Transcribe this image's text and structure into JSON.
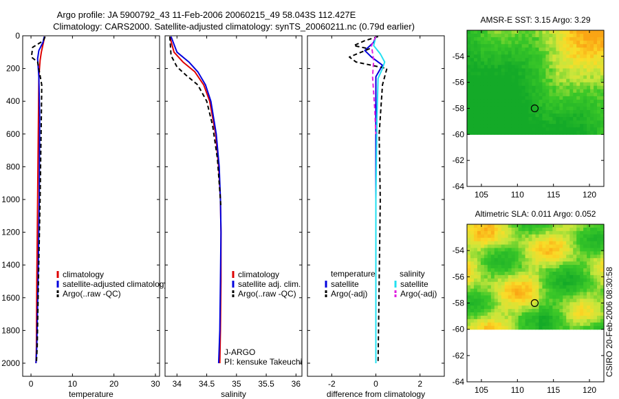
{
  "header": {
    "line1": "Argo profile: JA 5900792_43 11-Feb-2006 20060215_49 58.043S 112.427E",
    "line2": "Climatology: CARS2000. Satellite-adjusted climatology: synTS_20060211.nc (0.79d earlier)"
  },
  "colors": {
    "climatology": "#dd0000",
    "satellite": "#0000dd",
    "argo": "#000000",
    "salinity_satellite": "#22e0f0",
    "salinity_argo": "#e020e0"
  },
  "chart_data": [
    {
      "type": "line",
      "name": "temperature-profile",
      "xlabel": "temperature",
      "ylabel": "",
      "xlim": [
        -2,
        31
      ],
      "ylim": [
        2080,
        0
      ],
      "xticks": [
        "0",
        "10",
        "20",
        "30"
      ],
      "xtick_values": [
        0,
        10,
        20,
        30
      ],
      "yticks": [
        "0",
        "200",
        "400",
        "600",
        "800",
        "1000",
        "1200",
        "1400",
        "1600",
        "1800",
        "2000"
      ],
      "ytick_values": [
        0,
        200,
        400,
        600,
        800,
        1000,
        1200,
        1400,
        1600,
        1800,
        2000
      ],
      "legend": [
        "climatology",
        "satellite-adjusted climatology",
        "Argo(..raw -QC)"
      ],
      "series": [
        {
          "name": "climatology",
          "style": "solid",
          "color_key": "climatology",
          "x": [
            3.3,
            3.0,
            2.5,
            2.2,
            1.9,
            1.8,
            1.6,
            1.4,
            1.3,
            1.2
          ],
          "y": [
            5,
            40,
            100,
            150,
            250,
            500,
            1000,
            1500,
            1900,
            2000
          ]
        },
        {
          "name": "satellite-adjusted climatology",
          "style": "solid",
          "color_key": "satellite",
          "x": [
            3.2,
            2.9,
            1.9,
            1.6,
            1.9,
            2.1,
            2.0,
            1.7,
            1.4,
            1.2
          ],
          "y": [
            5,
            40,
            90,
            140,
            250,
            500,
            1000,
            1500,
            1900,
            2000
          ]
        },
        {
          "name": "Argo(..raw -QC)",
          "style": "dashed",
          "color_key": "argo",
          "x": [
            3.4,
            3.0,
            0.4,
            0.1,
            1.6,
            2.6,
            2.5,
            2.2,
            1.8,
            1.5,
            1.3
          ],
          "y": [
            5,
            30,
            70,
            130,
            160,
            300,
            500,
            1000,
            1500,
            1900,
            2000
          ]
        }
      ]
    },
    {
      "type": "line",
      "name": "salinity-profile",
      "xlabel": "salinity",
      "xlim": [
        33.8,
        36.1
      ],
      "ylim": [
        2080,
        0
      ],
      "xticks": [
        "34",
        "34.5",
        "35",
        "35.5",
        "36"
      ],
      "xtick_values": [
        34,
        34.5,
        35,
        35.5,
        36
      ],
      "legend": [
        "climatology",
        "satellite adj. clim.",
        "Argo(..raw -QC)"
      ],
      "annotation": [
        "J-ARGO",
        "PI: kensuke Takeuchi"
      ],
      "series": [
        {
          "name": "climatology",
          "style": "solid",
          "color_key": "climatology",
          "x": [
            33.88,
            33.95,
            34.1,
            34.3,
            34.45,
            34.55,
            34.65,
            34.7,
            34.73,
            34.74,
            34.74,
            34.73,
            34.72
          ],
          "y": [
            5,
            100,
            160,
            220,
            300,
            400,
            600,
            800,
            1000,
            1200,
            1500,
            1800,
            2000
          ]
        },
        {
          "name": "satellite adj. clim.",
          "style": "solid",
          "color_key": "satellite",
          "x": [
            33.9,
            34.0,
            34.2,
            34.35,
            34.48,
            34.57,
            34.66,
            34.71,
            34.73,
            34.74,
            34.73,
            34.72,
            34.7
          ],
          "y": [
            5,
            100,
            160,
            220,
            300,
            400,
            600,
            800,
            1000,
            1200,
            1500,
            1800,
            2000
          ]
        },
        {
          "name": "Argo(..raw -QC)",
          "style": "dashed",
          "color_key": "argo",
          "x": [
            33.88,
            33.9,
            34.0,
            34.15,
            34.35,
            34.5,
            34.6,
            34.68,
            34.72,
            34.74
          ],
          "y": [
            5,
            120,
            190,
            240,
            300,
            400,
            550,
            750,
            950,
            1050
          ]
        }
      ]
    },
    {
      "type": "line",
      "name": "difference-profile",
      "xlabel": "difference from climatology",
      "xlim": [
        -3.1,
        3.1
      ],
      "ylim": [
        2080,
        0
      ],
      "xticks": [
        "-2",
        "0",
        "2"
      ],
      "xtick_values": [
        -2,
        0,
        2
      ],
      "legend_headers": [
        "temperature",
        "salinity"
      ],
      "legend": [
        "satellite",
        "Argo(-adj)",
        "satellite",
        "Argo(-adj)"
      ],
      "series": [
        {
          "name": "temperature satellite",
          "style": "solid",
          "color_key": "satellite",
          "x": [
            0,
            -0.1,
            -0.5,
            -0.2,
            0.3,
            0.0,
            0.0,
            0.0,
            0.0,
            0.0
          ],
          "y": [
            5,
            40,
            90,
            130,
            180,
            250,
            600,
            1000,
            1500,
            2000
          ]
        },
        {
          "name": "temperature Argo(-adj)",
          "style": "dashed",
          "color_key": "argo",
          "x": [
            0.1,
            -0.5,
            -1.0,
            -0.3,
            -1.2,
            -0.9,
            0.5,
            0.3,
            0.15,
            0.2,
            0.15,
            0.1
          ],
          "y": [
            5,
            30,
            60,
            80,
            130,
            160,
            200,
            300,
            600,
            1000,
            1500,
            2000
          ]
        },
        {
          "name": "salinity satellite",
          "style": "solid",
          "color_key": "salinity_satellite",
          "x": [
            0.0,
            -0.1,
            0.2,
            0.4,
            0.3,
            0.1,
            0.05,
            0.0,
            0.0,
            0.0
          ],
          "y": [
            5,
            60,
            110,
            160,
            200,
            260,
            500,
            1000,
            1500,
            2000
          ]
        },
        {
          "name": "salinity Argo(-adj)",
          "style": "dashed",
          "color_key": "salinity_argo",
          "x": [
            0.0,
            -0.2,
            -0.1,
            -0.15,
            -0.05,
            0.0
          ],
          "y": [
            5,
            60,
            150,
            250,
            450,
            600
          ]
        }
      ]
    },
    {
      "type": "heatmap",
      "name": "sst-map",
      "title": "AMSR-E SST: 3.15 Argo: 3.29",
      "xlim": [
        103,
        122
      ],
      "ylim": [
        -64,
        -52
      ],
      "xticks": [
        "105",
        "110",
        "115",
        "120"
      ],
      "xtick_values": [
        105,
        110,
        115,
        120
      ],
      "yticks": [
        "-54",
        "-56",
        "-58",
        "-60",
        "-62",
        "-64"
      ],
      "ytick_values": [
        -54,
        -56,
        -58,
        -60,
        -62,
        -64
      ],
      "data_extent_lat": [
        -60,
        -52
      ],
      "marker": {
        "lon": 112.4,
        "lat": -58.0
      }
    },
    {
      "type": "heatmap",
      "name": "sla-map",
      "title": "Altimetric SLA: 0.011 Argo: 0.052",
      "xlim": [
        103,
        122
      ],
      "ylim": [
        -64,
        -52
      ],
      "xticks": [
        "105",
        "110",
        "115",
        "120"
      ],
      "xtick_values": [
        105,
        110,
        115,
        120
      ],
      "yticks": [
        "-54",
        "-56",
        "-58",
        "-60",
        "-62",
        "-64"
      ],
      "ytick_values": [
        -54,
        -56,
        -58,
        -60,
        -62,
        -64
      ],
      "data_extent_lat": [
        -60,
        -52
      ],
      "marker": {
        "lon": 112.4,
        "lat": -58.0
      }
    }
  ],
  "footer": {
    "credit": "CSIRO 20-Feb-2006 08:30:58"
  }
}
